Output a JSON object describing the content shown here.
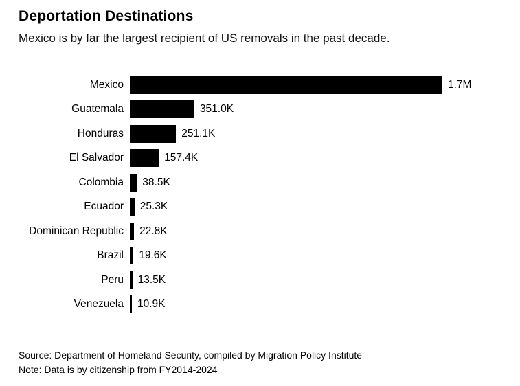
{
  "header": {
    "title": "Deportation Destinations",
    "subtitle": "Mexico is by far the largest recipient of US removals in the past decade."
  },
  "chart_data": {
    "type": "bar",
    "orientation": "horizontal",
    "title": "Deportation Destinations",
    "subtitle": "Mexico is by far the largest recipient of US removals in the past decade.",
    "categories": [
      "Mexico",
      "Guatemala",
      "Honduras",
      "El Salvador",
      "Colombia",
      "Ecuador",
      "Dominican Republic",
      "Brazil",
      "Peru",
      "Venezuela"
    ],
    "values": [
      1700000,
      351000,
      251100,
      157400,
      38500,
      25300,
      22800,
      19600,
      13500,
      10900
    ],
    "value_labels": [
      "1.7M",
      "351.0K",
      "251.1K",
      "157.4K",
      "38.5K",
      "25.3K",
      "22.8K",
      "19.6K",
      "13.5K",
      "10.9K"
    ],
    "bar_color": "#000000",
    "xlabel": "",
    "ylabel": "",
    "xlim": [
      0,
      1700000
    ],
    "grid": false,
    "legend": "none"
  },
  "footer": {
    "source": "Source: Department of Homeland Security, compiled by Migration Policy Institute",
    "note": "Note: Data is by citizenship from FY2014-2024"
  }
}
